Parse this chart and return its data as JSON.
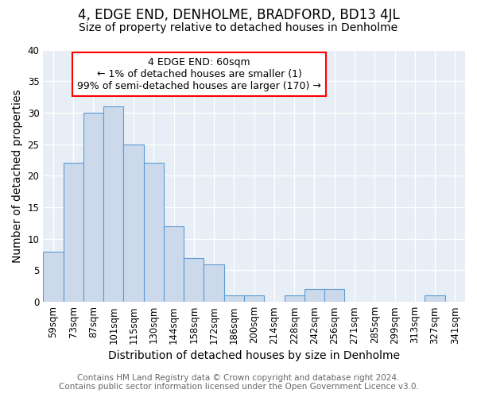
{
  "title": "4, EDGE END, DENHOLME, BRADFORD, BD13 4JL",
  "subtitle": "Size of property relative to detached houses in Denholme",
  "xlabel": "Distribution of detached houses by size in Denholme",
  "ylabel": "Number of detached properties",
  "categories": [
    "59sqm",
    "73sqm",
    "87sqm",
    "101sqm",
    "115sqm",
    "130sqm",
    "144sqm",
    "158sqm",
    "172sqm",
    "186sqm",
    "200sqm",
    "214sqm",
    "228sqm",
    "242sqm",
    "256sqm",
    "271sqm",
    "285sqm",
    "299sqm",
    "313sqm",
    "327sqm",
    "341sqm"
  ],
  "values": [
    8,
    22,
    30,
    31,
    25,
    22,
    12,
    7,
    6,
    1,
    1,
    0,
    1,
    2,
    2,
    0,
    0,
    0,
    0,
    1,
    0
  ],
  "bar_color": "#ccd9ea",
  "bar_edge_color": "#5b9bd5",
  "annotation_title": "4 EDGE END: 60sqm",
  "annotation_line1": "← 1% of detached houses are smaller (1)",
  "annotation_line2": "99% of semi-detached houses are larger (170) →",
  "annotation_box_color": "white",
  "annotation_box_edge_color": "red",
  "ylim": [
    0,
    40
  ],
  "yticks": [
    0,
    5,
    10,
    15,
    20,
    25,
    30,
    35,
    40
  ],
  "footer_line1": "Contains HM Land Registry data © Crown copyright and database right 2024.",
  "footer_line2": "Contains public sector information licensed under the Open Government Licence v3.0.",
  "background_color": "#e8eef5",
  "title_fontsize": 12,
  "subtitle_fontsize": 10,
  "axis_label_fontsize": 10,
  "tick_fontsize": 8.5,
  "annotation_fontsize": 9,
  "footer_fontsize": 7.5
}
